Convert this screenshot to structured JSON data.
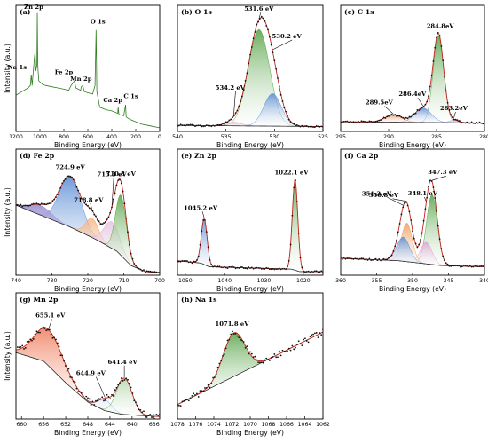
{
  "chart_data": [
    {
      "id": "a",
      "type": "line",
      "title": "(a)",
      "xlabel": "Binding Energy (eV)",
      "ylabel": "Intensity (a.u.)",
      "xlim": [
        1200,
        0
      ],
      "ylim": [
        0,
        1
      ],
      "xticks": [
        "1200",
        "1000",
        "800",
        "600",
        "400",
        "200",
        "0"
      ],
      "annotations": [
        {
          "text": "Zn 2p",
          "x": 1022,
          "y": 0.97
        },
        {
          "text": "O 1s",
          "x": 531,
          "y": 0.85
        },
        {
          "text": "Na 1s",
          "x": 1072,
          "y": 0.5
        },
        {
          "text": "Fe 2p",
          "x": 711,
          "y": 0.43
        },
        {
          "text": "Mn 2p",
          "x": 642,
          "y": 0.39
        },
        {
          "text": "Ca 2p",
          "x": 347,
          "y": 0.2
        },
        {
          "text": "C 1s",
          "x": 285,
          "y": 0.23
        }
      ],
      "series": [
        {
          "color": "#2e7d1f",
          "x": [
            1200,
            1150,
            1100,
            1080,
            1072,
            1065,
            1045,
            1040,
            1035,
            1025,
            1022,
            1018,
            1010,
            980,
            950,
            900,
            850,
            800,
            760,
            740,
            725,
            711,
            700,
            680,
            660,
            655,
            642,
            630,
            600,
            560,
            540,
            531,
            525,
            500,
            450,
            400,
            350,
            347,
            340,
            300,
            285,
            280,
            250,
            200,
            150,
            100,
            50,
            0
          ],
          "y": [
            0.3,
            0.33,
            0.36,
            0.38,
            0.47,
            0.38,
            0.62,
            0.66,
            0.5,
            0.55,
            0.98,
            0.55,
            0.42,
            0.39,
            0.38,
            0.37,
            0.36,
            0.35,
            0.34,
            0.38,
            0.4,
            0.42,
            0.36,
            0.35,
            0.34,
            0.37,
            0.38,
            0.33,
            0.32,
            0.31,
            0.38,
            0.84,
            0.33,
            0.2,
            0.18,
            0.17,
            0.15,
            0.2,
            0.14,
            0.13,
            0.22,
            0.12,
            0.1,
            0.08,
            0.06,
            0.05,
            0.04,
            0.03
          ]
        }
      ]
    },
    {
      "id": "b",
      "type": "area",
      "title": "(b) O 1s",
      "xlabel": "Binding Energy (eV)",
      "ylabel": "",
      "xlim": [
        540,
        525
      ],
      "ylim": [
        0,
        1
      ],
      "xticks": [
        "540",
        "535",
        "530",
        "525"
      ],
      "peaks": [
        {
          "label": "531.6 eV",
          "center": 531.6,
          "height": 0.8,
          "width": 1.1,
          "color": "#5aa54a"
        },
        {
          "label": "530.2 eV",
          "center": 530.2,
          "height": 0.27,
          "width": 0.9,
          "color": "#5f8fd6"
        },
        {
          "label": "534.2 eV",
          "center": 534.2,
          "height": 0.03,
          "width": 0.8,
          "color": "#d8a7c9"
        }
      ],
      "background": [
        [
          540,
          0.05
        ],
        [
          525,
          0.04
        ]
      ]
    },
    {
      "id": "c",
      "type": "area",
      "title": "(c) C 1s",
      "xlabel": "Binding Energy (eV)",
      "ylabel": "",
      "xlim": [
        295,
        280
      ],
      "ylim": [
        0,
        1
      ],
      "xticks": [
        "295",
        "290",
        "285",
        "280"
      ],
      "peaks": [
        {
          "label": "284.8eV",
          "center": 284.8,
          "height": 0.72,
          "width": 0.55,
          "color": "#5aa54a"
        },
        {
          "label": "286.4eV",
          "center": 286.4,
          "height": 0.12,
          "width": 0.85,
          "color": "#5f8fd6"
        },
        {
          "label": "289.5eV",
          "center": 289.5,
          "height": 0.06,
          "width": 0.9,
          "color": "#e9a070"
        },
        {
          "label": "283.2eV",
          "center": 283.2,
          "height": 0.02,
          "width": 0.5,
          "color": "#c9a7d8"
        }
      ],
      "background": [
        [
          295,
          0.08
        ],
        [
          280,
          0.07
        ]
      ]
    },
    {
      "id": "d",
      "type": "area",
      "title": "(d) Fe 2p",
      "xlabel": "Binding Energy (eV)",
      "ylabel": "Intensity (a.u.)",
      "xlim": [
        740,
        700
      ],
      "ylim": [
        0,
        1
      ],
      "xticks": [
        "740",
        "730",
        "720",
        "710",
        "700"
      ],
      "peaks": [
        {
          "label": "724.9 eV",
          "center": 724.9,
          "height": 0.42,
          "width": 3.0,
          "color": "#5f8fd6"
        },
        {
          "label": "718.8 eV",
          "center": 718.8,
          "height": 0.16,
          "width": 1.8,
          "color": "#f0a060"
        },
        {
          "label": "713.3 eV",
          "center": 713.3,
          "height": 0.22,
          "width": 2.2,
          "color": "#d8a7d0"
        },
        {
          "label": "710.8 eV",
          "center": 710.8,
          "height": 0.5,
          "width": 1.5,
          "color": "#5aa54a"
        },
        {
          "label": "",
          "center": 733,
          "height": 0.08,
          "width": 3.0,
          "color": "#9a8fd0"
        }
      ],
      "background": [
        [
          740,
          0.58
        ],
        [
          735,
          0.52
        ],
        [
          725,
          0.4
        ],
        [
          718,
          0.3
        ],
        [
          712,
          0.2
        ],
        [
          708,
          0.08
        ],
        [
          704,
          0.03
        ],
        [
          700,
          0.02
        ]
      ]
    },
    {
      "id": "e",
      "type": "area",
      "title": "(e) Zn 2p",
      "xlabel": "Binding Energy (eV)",
      "ylabel": "",
      "xlim": [
        1052,
        1015
      ],
      "ylim": [
        0,
        1
      ],
      "xticks": [
        "1050",
        "1040",
        "1030",
        "1020"
      ],
      "peaks": [
        {
          "label": "1045.2 eV",
          "center": 1045.2,
          "height": 0.38,
          "width": 0.75,
          "color": "#5f8fd6"
        },
        {
          "label": "1022.1 eV",
          "center": 1022.1,
          "height": 0.75,
          "width": 0.7,
          "color": "#5aa54a"
        }
      ],
      "background": [
        [
          1052,
          0.12
        ],
        [
          1046,
          0.1
        ],
        [
          1044,
          0.07
        ],
        [
          1023,
          0.05
        ],
        [
          1021,
          0.03
        ],
        [
          1015,
          0.03
        ]
      ]
    },
    {
      "id": "f",
      "type": "area",
      "title": "(f) Ca 2p",
      "xlabel": "Binding Energy (eV)",
      "ylabel": "",
      "xlim": [
        360,
        340
      ],
      "ylim": [
        0,
        1
      ],
      "xticks": [
        "360",
        "355",
        "350",
        "345",
        "340"
      ],
      "peaks": [
        {
          "label": "347.3 eV",
          "center": 347.3,
          "height": 0.58,
          "width": 0.75,
          "color": "#5aa54a"
        },
        {
          "label": "348.1 eV",
          "center": 348.1,
          "height": 0.18,
          "width": 0.8,
          "color": "#d8a7d0"
        },
        {
          "label": "350.8 eV",
          "center": 350.8,
          "height": 0.32,
          "width": 0.75,
          "color": "#f0a060"
        },
        {
          "label": "351.3 eV",
          "center": 351.3,
          "height": 0.2,
          "width": 0.9,
          "color": "#5f8fd6"
        }
      ],
      "background": [
        [
          360,
          0.14
        ],
        [
          352,
          0.12
        ],
        [
          349,
          0.1
        ],
        [
          346,
          0.08
        ],
        [
          340,
          0.07
        ]
      ]
    },
    {
      "id": "g",
      "type": "area",
      "title": "(g) Mn 2p",
      "xlabel": "Binding Energy (eV)",
      "ylabel": "Intensity (a.u.)",
      "xlim": [
        661,
        635
      ],
      "ylim": [
        0,
        1
      ],
      "xticks": [
        "660",
        "656",
        "652",
        "648",
        "644",
        "640",
        "636"
      ],
      "peaks": [
        {
          "label": "655.1 eV",
          "center": 655.1,
          "height": 0.3,
          "width": 2.6,
          "color": "#f08060"
        },
        {
          "label": "644.9 eV",
          "center": 644.9,
          "height": 0.09,
          "width": 1.2,
          "color": "#5f8fd6"
        },
        {
          "label": "641.4 eV",
          "center": 641.4,
          "height": 0.3,
          "width": 1.4,
          "color": "#5aa54a"
        }
      ],
      "background": [
        [
          661,
          0.55
        ],
        [
          656,
          0.48
        ],
        [
          652,
          0.3
        ],
        [
          648,
          0.14
        ],
        [
          645,
          0.07
        ],
        [
          642,
          0.04
        ],
        [
          639,
          0.03
        ],
        [
          635,
          0.02
        ]
      ]
    },
    {
      "id": "h",
      "type": "area",
      "title": "(h) Na 1s",
      "xlabel": "Binding Energy (eV)",
      "ylabel": "",
      "xlim": [
        1078,
        1062
      ],
      "ylim": [
        0,
        1
      ],
      "xticks": [
        "1078",
        "1076",
        "1074",
        "1072",
        "1070",
        "1068",
        "1066",
        "1064",
        "1062"
      ],
      "peaks": [
        {
          "label": "1071.8 eV",
          "center": 1071.8,
          "height": 0.36,
          "width": 1.2,
          "color": "#5aa54a"
        }
      ],
      "background": [
        [
          1078,
          0.12
        ],
        [
          1062,
          0.72
        ]
      ]
    }
  ]
}
